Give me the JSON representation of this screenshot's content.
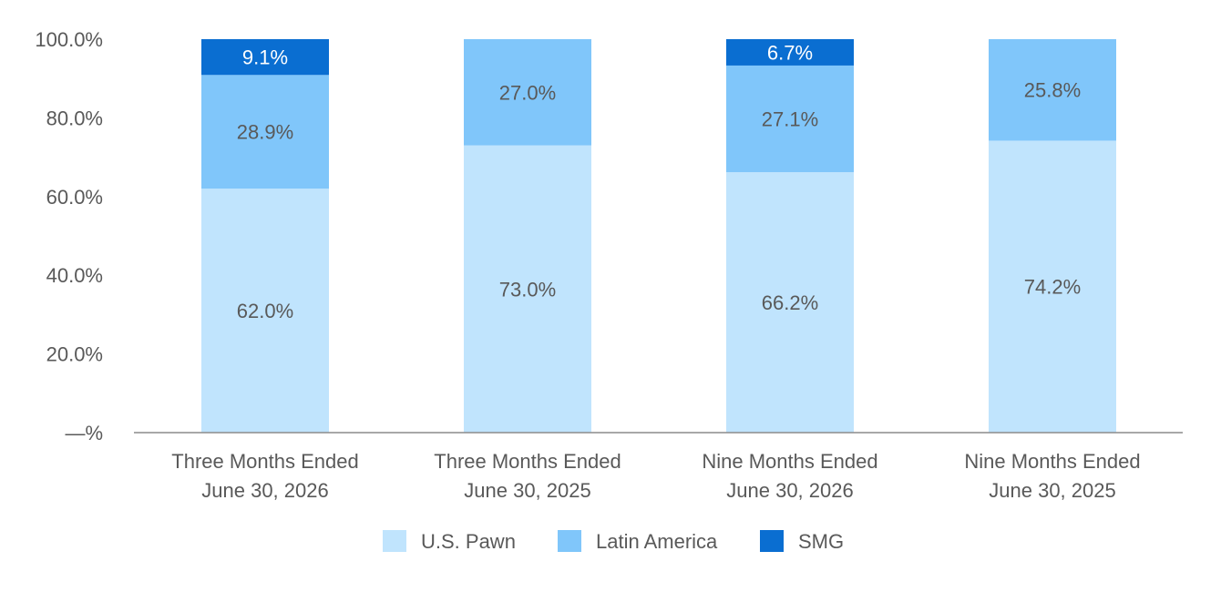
{
  "chart_data": {
    "type": "bar",
    "stacked": true,
    "title": "",
    "xlabel": "",
    "ylabel": "",
    "ylim": [
      0,
      100
    ],
    "y_ticks": [
      "—%",
      "20.0%",
      "40.0%",
      "60.0%",
      "80.0%",
      "100.0%"
    ],
    "categories": [
      [
        "Three Months Ended",
        "June 30, 2026"
      ],
      [
        "Three Months Ended",
        "June 30, 2025"
      ],
      [
        "Nine Months Ended",
        "June 30, 2026"
      ],
      [
        "Nine Months Ended",
        "June 30, 2025"
      ]
    ],
    "series": [
      {
        "name": "U.S. Pawn",
        "color": "#c0e4fd",
        "label_color": "#595959",
        "values": [
          62.0,
          73.0,
          66.2,
          74.2
        ],
        "labels": [
          "62.0%",
          "73.0%",
          "66.2%",
          "74.2%"
        ]
      },
      {
        "name": "Latin America",
        "color": "#80c6fa",
        "label_color": "#595959",
        "values": [
          28.9,
          27.0,
          27.1,
          25.8
        ],
        "labels": [
          "28.9%",
          "27.0%",
          "27.1%",
          "25.8%"
        ]
      },
      {
        "name": "SMG",
        "color": "#0a6ed1",
        "label_color": "#ffffff",
        "values": [
          9.1,
          0,
          6.7,
          0
        ],
        "labels": [
          "9.1%",
          "",
          "6.7%",
          ""
        ]
      }
    ],
    "grid": false,
    "legend": "bottom"
  }
}
